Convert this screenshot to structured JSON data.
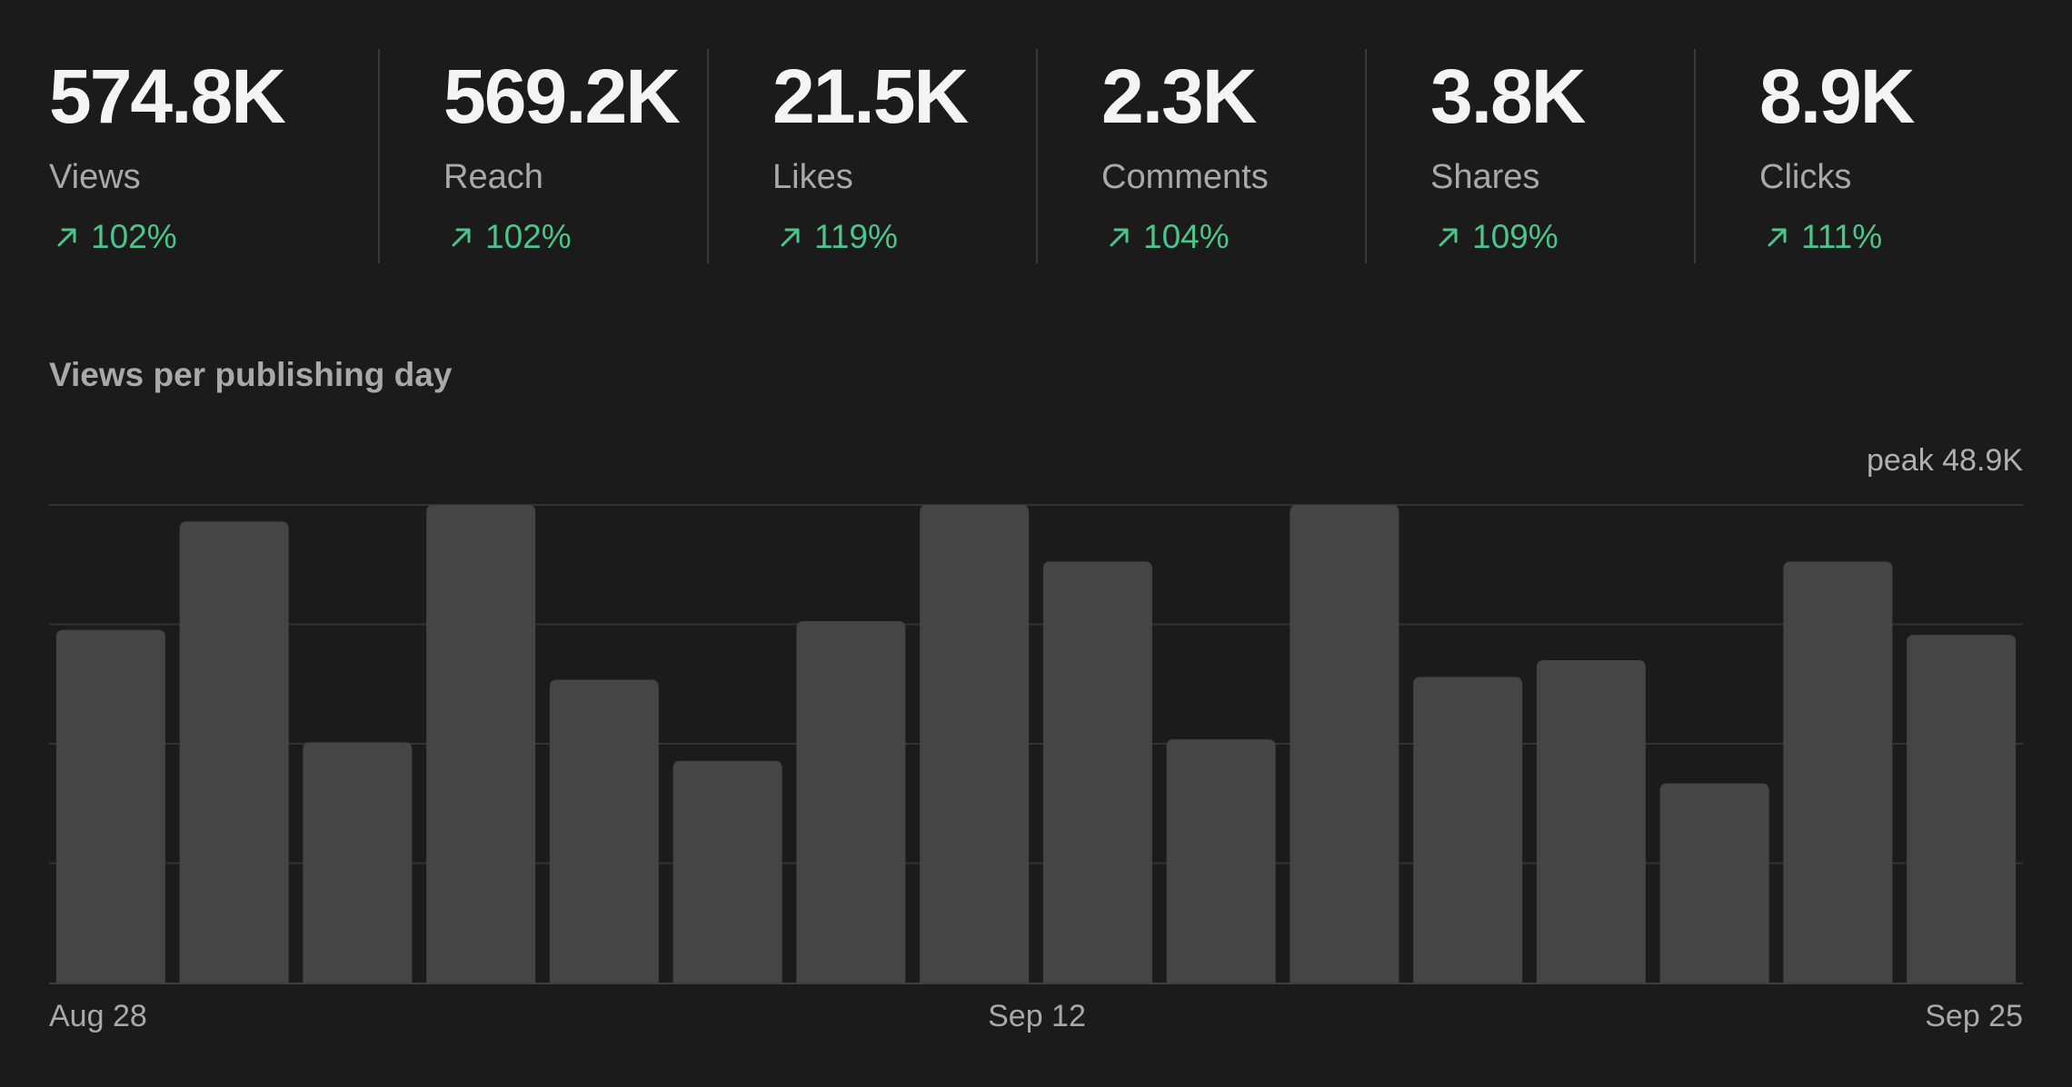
{
  "stats": [
    {
      "value": "574.8K",
      "label": "Views",
      "delta": "102%"
    },
    {
      "value": "569.2K",
      "label": "Reach",
      "delta": "102%"
    },
    {
      "value": "21.5K",
      "label": "Likes",
      "delta": "119%"
    },
    {
      "value": "2.3K",
      "label": "Comments",
      "delta": "104%"
    },
    {
      "value": "3.8K",
      "label": "Shares",
      "delta": "109%"
    },
    {
      "value": "8.9K",
      "label": "Clicks",
      "delta": "111%"
    }
  ],
  "colors": {
    "background": "#1b1b1b",
    "bar": "#454545",
    "positive": "#4cc48a",
    "grid": "#333333"
  },
  "chart_data": {
    "type": "bar",
    "title": "Views per publishing day",
    "peak_label": "peak 48.9K",
    "x_labels": [
      "Aug 28",
      "Sep 12",
      "Sep 25"
    ],
    "values": [
      36.1,
      47.2,
      24.6,
      48.9,
      31.0,
      22.7,
      37.0,
      48.9,
      43.1,
      24.9,
      48.9,
      31.3,
      33.0,
      20.4,
      43.1,
      35.6
    ],
    "ylim": [
      0,
      48.9
    ],
    "grid": true
  }
}
